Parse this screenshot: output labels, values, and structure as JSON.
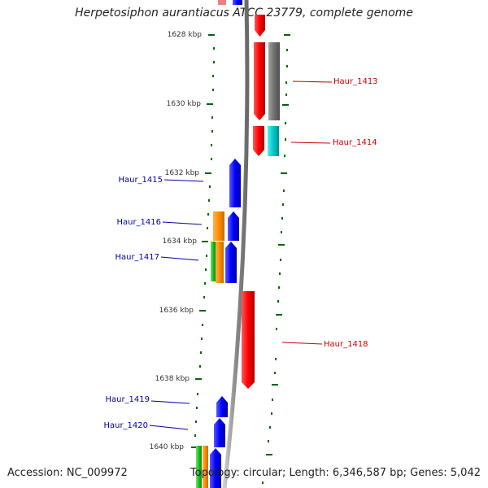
{
  "title": "Herpetosiphon aurantiacus ATCC 23779, complete genome",
  "footer": {
    "accession": "Accession: NC_009972",
    "stats": "Topology: circular; Length: 6,346,587 bp; Genes: 5,042"
  },
  "colors": {
    "forward_label": "#cc0000",
    "reverse_label": "#0000aa",
    "ticks": "#006600",
    "backbone": "#888888"
  },
  "ticks": [
    {
      "kbp": 1628,
      "label": "1628 kbp"
    },
    {
      "kbp": 1630,
      "label": "1630 kbp"
    },
    {
      "kbp": 1632,
      "label": "1632 kbp"
    },
    {
      "kbp": 1634,
      "label": "1634 kbp"
    },
    {
      "kbp": 1636,
      "label": "1636 kbp"
    },
    {
      "kbp": 1638,
      "label": "1638 kbp"
    },
    {
      "kbp": 1640,
      "label": "1640 kbp"
    }
  ],
  "genes": [
    {
      "name": "Haur_1413",
      "strand": "forward",
      "color": "#ff0000"
    },
    {
      "name": "Haur_1414",
      "strand": "forward",
      "color": "#ff0000"
    },
    {
      "name": "Haur_1415",
      "strand": "reverse",
      "color": "#0000ff"
    },
    {
      "name": "Haur_1416",
      "strand": "reverse",
      "color": "#0000ff"
    },
    {
      "name": "Haur_1417",
      "strand": "reverse",
      "color": "#0000ff"
    },
    {
      "name": "Haur_1418",
      "strand": "forward",
      "color": "#ff0000"
    },
    {
      "name": "Haur_1419",
      "strand": "reverse",
      "color": "#0000ff"
    },
    {
      "name": "Haur_1420",
      "strand": "reverse",
      "color": "#0000ff"
    }
  ],
  "cog_colors": [
    "#808080",
    "#00cccc",
    "#ff8c00",
    "#33cc33"
  ]
}
